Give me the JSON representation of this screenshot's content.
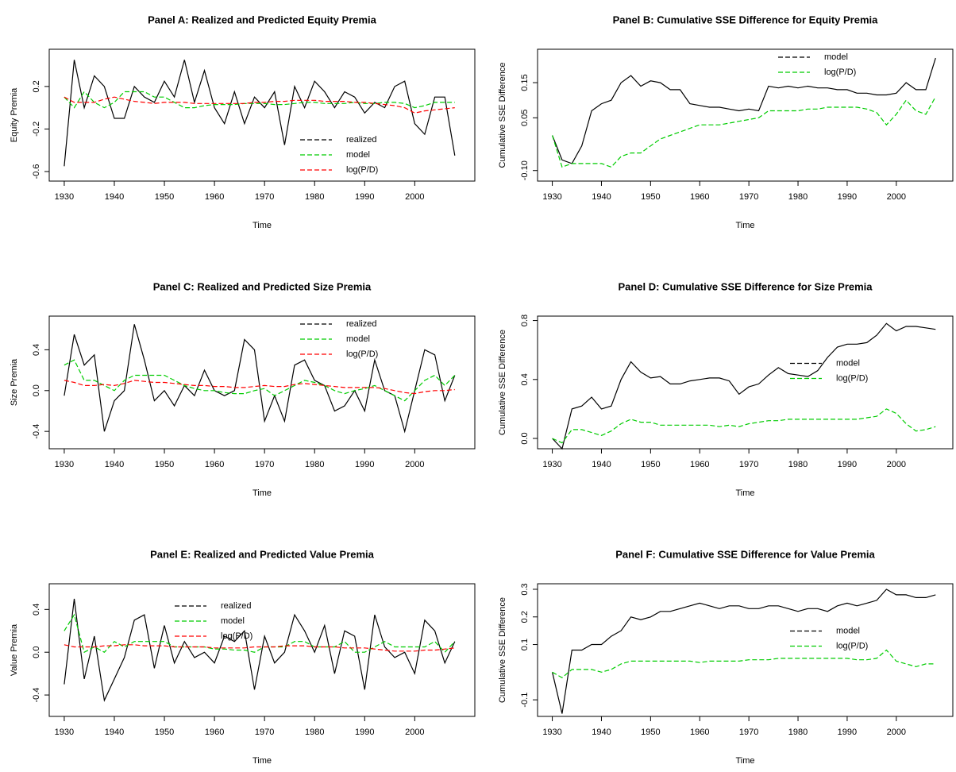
{
  "chart_data": [
    {
      "type": "line",
      "title": "Panel A: Realized and Predicted Equity Premia",
      "xlabel": "Time",
      "ylabel": "Equity Premia",
      "x": [
        1930,
        1932,
        1934,
        1936,
        1938,
        1940,
        1942,
        1944,
        1946,
        1948,
        1950,
        1952,
        1954,
        1956,
        1958,
        1960,
        1962,
        1964,
        1966,
        1968,
        1970,
        1972,
        1974,
        1976,
        1978,
        1980,
        1982,
        1984,
        1986,
        1988,
        1990,
        1992,
        1994,
        1996,
        1998,
        2000,
        2002,
        2004,
        2006,
        2008
      ],
      "xlim": [
        1927,
        2012
      ],
      "xticks": [
        1930,
        1940,
        1950,
        1960,
        1970,
        1980,
        1990,
        2000
      ],
      "ylim": [
        -0.69,
        0.55
      ],
      "yticks": [
        -0.6,
        -0.2,
        0.2
      ],
      "legend": "bottom-right",
      "series": [
        {
          "name": "realized",
          "color": "#000000",
          "style": "solid",
          "values": [
            -0.55,
            0.45,
            0.0,
            0.3,
            0.2,
            -0.1,
            -0.1,
            0.2,
            0.1,
            0.05,
            0.25,
            0.1,
            0.45,
            0.05,
            0.35,
            0.0,
            -0.15,
            0.15,
            -0.15,
            0.1,
            0.0,
            0.15,
            -0.35,
            0.2,
            0.0,
            0.25,
            0.15,
            0.0,
            0.15,
            0.1,
            -0.05,
            0.05,
            0.0,
            0.2,
            0.25,
            -0.15,
            -0.25,
            0.1,
            0.1,
            -0.45
          ]
        },
        {
          "name": "model",
          "color": "#00cc00",
          "style": "dashed",
          "values": [
            0.1,
            0.0,
            0.15,
            0.05,
            0.0,
            0.05,
            0.15,
            0.15,
            0.15,
            0.1,
            0.1,
            0.05,
            0.0,
            0.0,
            0.02,
            0.03,
            0.03,
            0.03,
            0.04,
            0.04,
            0.04,
            0.03,
            0.03,
            0.04,
            0.05,
            0.05,
            0.04,
            0.04,
            0.04,
            0.05,
            0.04,
            0.04,
            0.05,
            0.05,
            0.04,
            0.0,
            0.02,
            0.05,
            0.05,
            0.05
          ]
        },
        {
          "name": "log(P/D)",
          "color": "#ff0000",
          "style": "dashed",
          "values": [
            0.1,
            0.05,
            0.05,
            0.05,
            0.08,
            0.1,
            0.08,
            0.06,
            0.05,
            0.04,
            0.05,
            0.05,
            0.05,
            0.04,
            0.04,
            0.04,
            0.04,
            0.04,
            0.04,
            0.05,
            0.05,
            0.06,
            0.06,
            0.07,
            0.07,
            0.07,
            0.06,
            0.06,
            0.06,
            0.05,
            0.05,
            0.04,
            0.03,
            0.02,
            0.0,
            -0.05,
            -0.03,
            -0.02,
            -0.01,
            0.0
          ]
        }
      ]
    },
    {
      "type": "line",
      "title": "Panel B: Cumulative SSE Difference for Equity Premia",
      "xlabel": "Time",
      "ylabel": "Cumulative SSE Difference",
      "x": [
        1930,
        1932,
        1934,
        1936,
        1938,
        1940,
        1942,
        1944,
        1946,
        1948,
        1950,
        1952,
        1954,
        1956,
        1958,
        1960,
        1962,
        1964,
        1966,
        1968,
        1970,
        1972,
        1974,
        1976,
        1978,
        1980,
        1982,
        1984,
        1986,
        1988,
        1990,
        1992,
        1994,
        1996,
        1998,
        2000,
        2002,
        2004,
        2006,
        2008
      ],
      "xlim": [
        1927,
        2011.5
      ],
      "xticks": [
        1930,
        1940,
        1950,
        1960,
        1970,
        1980,
        1990,
        2000
      ],
      "ylim": [
        -0.13,
        0.245
      ],
      "yticks": [
        {
          "value": -0.1,
          "label": "-0.10"
        },
        0.05,
        0.15
      ],
      "legend": "top-right",
      "series": [
        {
          "name": "model",
          "color": "#000000",
          "style": "solid",
          "values": [
            0.0,
            -0.07,
            -0.08,
            -0.03,
            0.07,
            0.09,
            0.1,
            0.15,
            0.17,
            0.14,
            0.155,
            0.15,
            0.13,
            0.13,
            0.09,
            0.085,
            0.08,
            0.08,
            0.075,
            0.07,
            0.075,
            0.07,
            0.14,
            0.135,
            0.14,
            0.135,
            0.14,
            0.135,
            0.135,
            0.13,
            0.13,
            0.12,
            0.12,
            0.115,
            0.115,
            0.12,
            0.15,
            0.13,
            0.13,
            0.22
          ]
        },
        {
          "name": "log(P/D)",
          "color": "#00cc00",
          "style": "dashed",
          "values": [
            0.0,
            -0.09,
            -0.08,
            -0.08,
            -0.08,
            -0.08,
            -0.09,
            -0.06,
            -0.05,
            -0.05,
            -0.03,
            -0.01,
            0.0,
            0.01,
            0.02,
            0.03,
            0.03,
            0.03,
            0.035,
            0.04,
            0.045,
            0.05,
            0.07,
            0.07,
            0.07,
            0.07,
            0.075,
            0.075,
            0.08,
            0.08,
            0.08,
            0.08,
            0.075,
            0.065,
            0.03,
            0.06,
            0.1,
            0.07,
            0.06,
            0.11
          ]
        }
      ]
    },
    {
      "type": "line",
      "title": "Panel C: Realized and Predicted Size Premia",
      "xlabel": "Time",
      "ylabel": "Size Premia",
      "x": [
        1930,
        1932,
        1934,
        1936,
        1938,
        1940,
        1942,
        1944,
        1946,
        1948,
        1950,
        1952,
        1954,
        1956,
        1958,
        1960,
        1962,
        1964,
        1966,
        1968,
        1970,
        1972,
        1974,
        1976,
        1978,
        1980,
        1982,
        1984,
        1986,
        1988,
        1990,
        1992,
        1994,
        1996,
        1998,
        2000,
        2002,
        2004,
        2006,
        2008
      ],
      "xlim": [
        1927,
        2012
      ],
      "xticks": [
        1930,
        1940,
        1950,
        1960,
        1970,
        1980,
        1990,
        2000
      ],
      "ylim": [
        -0.57,
        0.73
      ],
      "yticks": [
        -0.4,
        {
          "value": 0,
          "label": "0.0"
        },
        0.4
      ],
      "legend": "top-right",
      "series": [
        {
          "name": "realized",
          "color": "#000000",
          "style": "solid",
          "values": [
            -0.05,
            0.55,
            0.25,
            0.35,
            -0.4,
            -0.1,
            0.0,
            0.65,
            0.3,
            -0.1,
            0.0,
            -0.15,
            0.05,
            -0.05,
            0.2,
            0.0,
            -0.05,
            0.0,
            0.5,
            0.4,
            -0.3,
            -0.05,
            -0.3,
            0.25,
            0.3,
            0.1,
            0.05,
            -0.2,
            -0.15,
            0.0,
            -0.2,
            0.3,
            0.0,
            -0.05,
            -0.4,
            0.0,
            0.4,
            0.35,
            -0.1,
            0.15
          ]
        },
        {
          "name": "model",
          "color": "#00cc00",
          "style": "dashed",
          "values": [
            0.25,
            0.3,
            0.1,
            0.1,
            0.05,
            0.0,
            0.1,
            0.15,
            0.15,
            0.15,
            0.15,
            0.1,
            0.05,
            0.02,
            0.0,
            0.0,
            -0.02,
            -0.03,
            -0.03,
            0.0,
            0.02,
            -0.05,
            0.0,
            0.05,
            0.1,
            0.08,
            0.05,
            0.0,
            -0.03,
            0.0,
            0.02,
            0.05,
            0.0,
            -0.05,
            -0.1,
            0.0,
            0.1,
            0.15,
            0.05,
            0.15
          ]
        },
        {
          "name": "log(P/D)",
          "color": "#ff0000",
          "style": "dashed",
          "values": [
            0.1,
            0.08,
            0.05,
            0.05,
            0.06,
            0.05,
            0.07,
            0.1,
            0.09,
            0.08,
            0.08,
            0.07,
            0.06,
            0.05,
            0.05,
            0.04,
            0.04,
            0.03,
            0.03,
            0.04,
            0.05,
            0.04,
            0.04,
            0.06,
            0.07,
            0.06,
            0.05,
            0.04,
            0.03,
            0.03,
            0.03,
            0.03,
            0.02,
            0.0,
            -0.02,
            -0.03,
            -0.01,
            0.0,
            0.0,
            0.01
          ]
        }
      ]
    },
    {
      "type": "line",
      "title": "Panel D: Cumulative SSE Difference for Size Premia",
      "xlabel": "Time",
      "ylabel": "Cumulative SSE Difference",
      "x": [
        1930,
        1932,
        1934,
        1936,
        1938,
        1940,
        1942,
        1944,
        1946,
        1948,
        1950,
        1952,
        1954,
        1956,
        1958,
        1960,
        1962,
        1964,
        1966,
        1968,
        1970,
        1972,
        1974,
        1976,
        1978,
        1980,
        1982,
        1984,
        1986,
        1988,
        1990,
        1992,
        1994,
        1996,
        1998,
        2000,
        2002,
        2004,
        2006,
        2008
      ],
      "xlim": [
        1927,
        2011.5
      ],
      "xticks": [
        1930,
        1940,
        1950,
        1960,
        1970,
        1980,
        1990,
        2000
      ],
      "ylim": [
        -0.07,
        0.83
      ],
      "yticks": [
        {
          "value": 0,
          "label": "0.0"
        },
        0.4,
        0.8
      ],
      "legend": "right",
      "series": [
        {
          "name": "model",
          "color": "#000000",
          "style": "solid",
          "values": [
            0.0,
            -0.07,
            0.2,
            0.22,
            0.28,
            0.2,
            0.22,
            0.4,
            0.52,
            0.45,
            0.41,
            0.42,
            0.37,
            0.37,
            0.39,
            0.4,
            0.41,
            0.41,
            0.39,
            0.3,
            0.35,
            0.37,
            0.43,
            0.48,
            0.44,
            0.43,
            0.42,
            0.46,
            0.55,
            0.62,
            0.64,
            0.64,
            0.65,
            0.7,
            0.78,
            0.73,
            0.76,
            0.76,
            0.75,
            0.74
          ]
        },
        {
          "name": "log(P/D)",
          "color": "#00cc00",
          "style": "dashed",
          "values": [
            0.0,
            -0.03,
            0.06,
            0.06,
            0.04,
            0.02,
            0.05,
            0.1,
            0.13,
            0.11,
            0.11,
            0.09,
            0.09,
            0.09,
            0.09,
            0.09,
            0.09,
            0.08,
            0.09,
            0.08,
            0.1,
            0.11,
            0.12,
            0.12,
            0.13,
            0.13,
            0.13,
            0.13,
            0.13,
            0.13,
            0.13,
            0.13,
            0.14,
            0.15,
            0.2,
            0.17,
            0.1,
            0.05,
            0.06,
            0.08
          ]
        }
      ]
    },
    {
      "type": "line",
      "title": "Panel E: Realized and Predicted Value Premia",
      "xlabel": "Time",
      "ylabel": "Value Premia",
      "x": [
        1930,
        1932,
        1934,
        1936,
        1938,
        1940,
        1942,
        1944,
        1946,
        1948,
        1950,
        1952,
        1954,
        1956,
        1958,
        1960,
        1962,
        1964,
        1966,
        1968,
        1970,
        1972,
        1974,
        1976,
        1978,
        1980,
        1982,
        1984,
        1986,
        1988,
        1990,
        1992,
        1994,
        1996,
        1998,
        2000,
        2002,
        2004,
        2006,
        2008
      ],
      "xlim": [
        1927,
        2012
      ],
      "xticks": [
        1930,
        1940,
        1950,
        1960,
        1970,
        1980,
        1990,
        2000
      ],
      "ylim": [
        -0.6,
        0.64
      ],
      "yticks": [
        -0.4,
        {
          "value": 0,
          "label": "0.0"
        },
        0.4
      ],
      "legend": "top",
      "series": [
        {
          "name": "realized",
          "color": "#000000",
          "style": "solid",
          "values": [
            -0.3,
            0.5,
            -0.25,
            0.15,
            -0.45,
            -0.25,
            -0.05,
            0.3,
            0.35,
            -0.15,
            0.25,
            -0.1,
            0.1,
            -0.05,
            0.0,
            -0.1,
            0.15,
            0.1,
            0.2,
            -0.35,
            0.15,
            -0.1,
            0.0,
            0.35,
            0.2,
            0.0,
            0.25,
            -0.2,
            0.2,
            0.15,
            -0.35,
            0.35,
            0.05,
            -0.05,
            0.0,
            -0.2,
            0.3,
            0.2,
            -0.1,
            0.1
          ]
        },
        {
          "name": "model",
          "color": "#00cc00",
          "style": "dashed",
          "values": [
            0.2,
            0.35,
            0.0,
            0.05,
            0.0,
            0.1,
            0.05,
            0.1,
            0.1,
            0.1,
            0.1,
            0.05,
            0.05,
            0.05,
            0.05,
            0.03,
            0.03,
            0.02,
            0.02,
            0.0,
            0.05,
            0.05,
            0.05,
            0.1,
            0.1,
            0.05,
            0.05,
            0.05,
            0.1,
            0.0,
            0.0,
            0.05,
            0.1,
            0.05,
            0.05,
            0.05,
            0.05,
            0.1,
            0.0,
            0.1
          ]
        },
        {
          "name": "log(P/D)",
          "color": "#ff0000",
          "style": "dashed",
          "values": [
            0.07,
            0.05,
            0.05,
            0.05,
            0.06,
            0.06,
            0.07,
            0.07,
            0.06,
            0.06,
            0.06,
            0.05,
            0.05,
            0.05,
            0.05,
            0.04,
            0.04,
            0.04,
            0.04,
            0.05,
            0.05,
            0.05,
            0.06,
            0.06,
            0.06,
            0.05,
            0.05,
            0.05,
            0.04,
            0.04,
            0.04,
            0.03,
            0.02,
            0.01,
            0.01,
            0.01,
            0.02,
            0.02,
            0.03,
            0.04
          ]
        }
      ]
    },
    {
      "type": "line",
      "title": "Panel F: Cumulative SSE Difference for Value Premia",
      "xlabel": "Time",
      "ylabel": "Cumulative SSE Difference",
      "x": [
        1930,
        1932,
        1934,
        1936,
        1938,
        1940,
        1942,
        1944,
        1946,
        1948,
        1950,
        1952,
        1954,
        1956,
        1958,
        1960,
        1962,
        1964,
        1966,
        1968,
        1970,
        1972,
        1974,
        1976,
        1978,
        1980,
        1982,
        1984,
        1986,
        1988,
        1990,
        1992,
        1994,
        1996,
        1998,
        2000,
        2002,
        2004,
        2006,
        2008
      ],
      "xlim": [
        1927,
        2011.5
      ],
      "xticks": [
        1930,
        1940,
        1950,
        1960,
        1970,
        1980,
        1990,
        2000
      ],
      "ylim": [
        -0.16,
        0.32
      ],
      "yticks": [
        -0.1,
        0.1,
        0.2,
        0.3
      ],
      "legend": "right",
      "series": [
        {
          "name": "model",
          "color": "#000000",
          "style": "solid",
          "values": [
            0.0,
            -0.15,
            0.08,
            0.08,
            0.1,
            0.1,
            0.13,
            0.15,
            0.2,
            0.19,
            0.2,
            0.22,
            0.22,
            0.23,
            0.24,
            0.25,
            0.24,
            0.23,
            0.24,
            0.24,
            0.23,
            0.23,
            0.24,
            0.24,
            0.23,
            0.22,
            0.23,
            0.23,
            0.22,
            0.24,
            0.25,
            0.24,
            0.25,
            0.26,
            0.3,
            0.28,
            0.28,
            0.27,
            0.27,
            0.28
          ]
        },
        {
          "name": "log(P/D)",
          "color": "#00cc00",
          "style": "dashed",
          "values": [
            0.0,
            -0.02,
            0.01,
            0.01,
            0.01,
            0.0,
            0.01,
            0.03,
            0.04,
            0.04,
            0.04,
            0.04,
            0.04,
            0.04,
            0.04,
            0.035,
            0.04,
            0.04,
            0.04,
            0.04,
            0.045,
            0.045,
            0.045,
            0.05,
            0.05,
            0.05,
            0.05,
            0.05,
            0.05,
            0.05,
            0.05,
            0.045,
            0.045,
            0.05,
            0.08,
            0.04,
            0.03,
            0.02,
            0.03,
            0.03
          ]
        }
      ]
    }
  ]
}
